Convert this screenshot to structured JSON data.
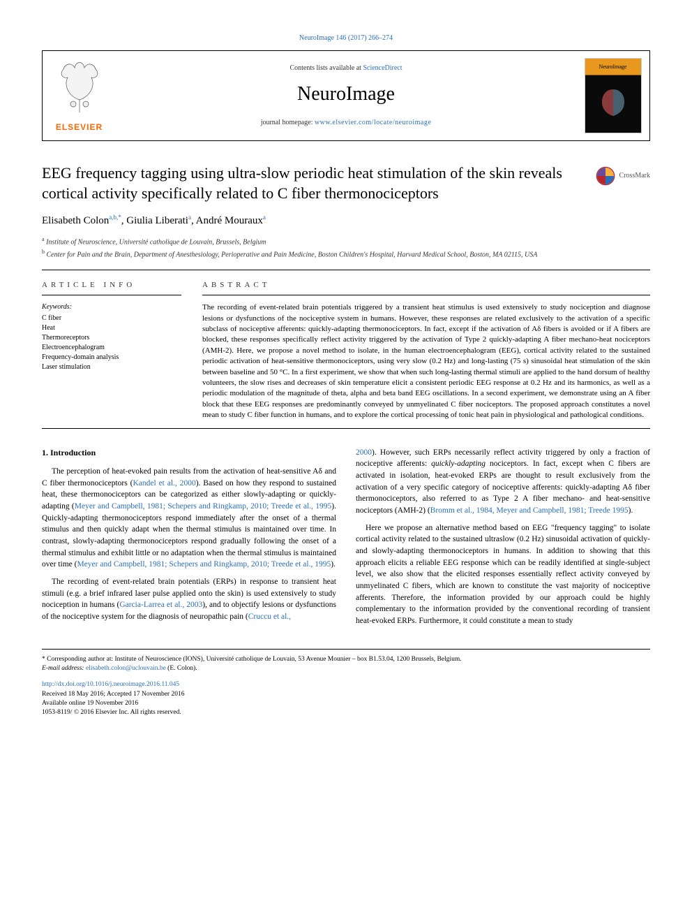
{
  "journal_ref": "NeuroImage 146 (2017) 266–274",
  "header": {
    "contents_prefix": "Contents lists available at ",
    "contents_link": "ScienceDirect",
    "journal_name": "NeuroImage",
    "homepage_prefix": "journal homepage: ",
    "homepage_link": "www.elsevier.com/locate/neuroimage",
    "publisher_logo_text": "ELSEVIER",
    "cover_label": "NeuroImage"
  },
  "colors": {
    "link": "#2a6ebb",
    "elsevier_orange": "#ff6600",
    "cover_top": "#e8981f",
    "cover_body": "#0a0a0a",
    "text": "#000000",
    "rule": "#000000"
  },
  "article": {
    "title": "EEG frequency tagging using ultra-slow periodic heat stimulation of the skin reveals cortical activity specifically related to C fiber thermonociceptors",
    "crossmark_label": "CrossMark",
    "authors_html": "Elisabeth Colon<sup>a,b,*</sup>, Giulia Liberati<sup>a</sup>, André Mouraux<sup>a</sup>",
    "affiliations": [
      {
        "mark": "a",
        "text": "Institute of Neuroscience, Université catholique de Louvain, Brussels, Belgium"
      },
      {
        "mark": "b",
        "text": "Center for Pain and the Brain, Department of Anesthesiology, Perioperative and Pain Medicine, Boston Children's Hospital, Harvard Medical School, Boston, MA 02115, USA"
      }
    ]
  },
  "info": {
    "heading": "ARTICLE INFO",
    "keywords_label": "Keywords:",
    "keywords": [
      "C fiber",
      "Heat",
      "Thermoreceptors",
      "Electroencephalogram",
      "Frequency-domain analysis",
      "Laser stimulation"
    ]
  },
  "abstract": {
    "heading": "ABSTRACT",
    "text": "The recording of event-related brain potentials triggered by a transient heat stimulus is used extensively to study nociception and diagnose lesions or dysfunctions of the nociceptive system in humans. However, these responses are related exclusively to the activation of a specific subclass of nociceptive afferents: quickly-adapting thermonociceptors. In fact, except if the activation of Aδ fibers is avoided or if A fibers are blocked, these responses specifically reflect activity triggered by the activation of Type 2 quickly-adapting A fiber mechano-heat nociceptors (AMH-2). Here, we propose a novel method to isolate, in the human electroencephalogram (EEG), cortical activity related to the sustained periodic activation of heat-sensitive thermonociceptors, using very slow (0.2 Hz) and long-lasting (75 s) sinusoidal heat stimulation of the skin between baseline and 50 °C. In a first experiment, we show that when such long-lasting thermal stimuli are applied to the hand dorsum of healthy volunteers, the slow rises and decreases of skin temperature elicit a consistent periodic EEG response at 0.2 Hz and its harmonics, as well as a periodic modulation of the magnitude of theta, alpha and beta band EEG oscillations. In a second experiment, we demonstrate using an A fiber block that these EEG responses are predominantly conveyed by unmyelinated C fiber nociceptors. The proposed approach constitutes a novel mean to study C fiber function in humans, and to explore the cortical processing of tonic heat pain in physiological and pathological conditions."
  },
  "body": {
    "section_heading": "1. Introduction",
    "paragraphs": [
      "The perception of heat-evoked pain results from the activation of heat-sensitive Aδ and C fiber thermonociceptors (<span class=\"cite\">Kandel et al., 2000</span>). Based on how they respond to sustained heat, these thermonociceptors can be categorized as either slowly-adapting or quickly-adapting (<span class=\"cite\">Meyer and Campbell, 1981; Schepers and Ringkamp, 2010; Treede et al., 1995</span>). Quickly-adapting thermonociceptors respond immediately after the onset of a thermal stimulus and then quickly adapt when the thermal stimulus is maintained over time. In contrast, slowly-adapting thermonociceptors respond gradually following the onset of a thermal stimulus and exhibit little or no adaptation when the thermal stimulus is maintained over time (<span class=\"cite\">Meyer and Campbell, 1981; Schepers and Ringkamp, 2010; Treede et al., 1995</span>).",
      "The recording of event-related brain potentials (ERPs) in response to transient heat stimuli (e.g. a brief infrared laser pulse applied onto the skin) is used extensively to study nociception in humans (<span class=\"cite\">Garcia-Larrea et al., 2003</span>), and to objectify lesions or dysfunctions of the nociceptive system for the diagnosis of neuropathic pain (<span class=\"cite\">Cruccu et al.,</span>",
      "<span class=\"cite\">2000</span>). However, such ERPs necessarily reflect activity triggered by only a fraction of nociceptive afferents: <i>quickly-adapting</i> nociceptors. In fact, except when C fibers are activated in isolation, heat-evoked ERPs are thought to result exclusively from the activation of a very specific category of nociceptive afferents: quickly-adapting Aδ fiber thermonociceptors, also referred to as Type 2 A fiber mechano- and heat-sensitive nociceptors (AMH-2) (<span class=\"cite\">Bromm et al., 1984, Meyer and Campbell, 1981; Treede 1995</span>).",
      "Here we propose an alternative method based on EEG \"frequency tagging\" to isolate cortical activity related to the sustained ultraslow (0.2 Hz) sinusoidal activation of quickly- and slowly-adapting thermonociceptors in humans. In addition to showing that this approach elicits a reliable EEG response which can be readily identified at single-subject level, we also show that the elicited responses essentially reflect activity conveyed by unmyelinated C fibers, which are known to constitute the vast majority of nociceptive afferents. Therefore, the information provided by our approach could be highly complementary to the information provided by the conventional recording of transient heat-evoked ERPs. Furthermore, it could constitute a mean to study"
    ]
  },
  "footnotes": {
    "corresponding": "* Corresponding author at: Institute of Neuroscience (IONS), Université catholique de Louvain, 53 Avenue Mounier – box B1.53.04, 1200 Brussels, Belgium.",
    "email_label": "E-mail address: ",
    "email": "elisabeth.colon@uclouvain.be",
    "email_suffix": " (E. Colon).",
    "doi": "http://dx.doi.org/10.1016/j.neuroimage.2016.11.045",
    "received": "Received 18 May 2016; Accepted 17 November 2016",
    "available": "Available online 19 November 2016",
    "copyright": "1053-8119/ © 2016 Elsevier Inc. All rights reserved."
  }
}
